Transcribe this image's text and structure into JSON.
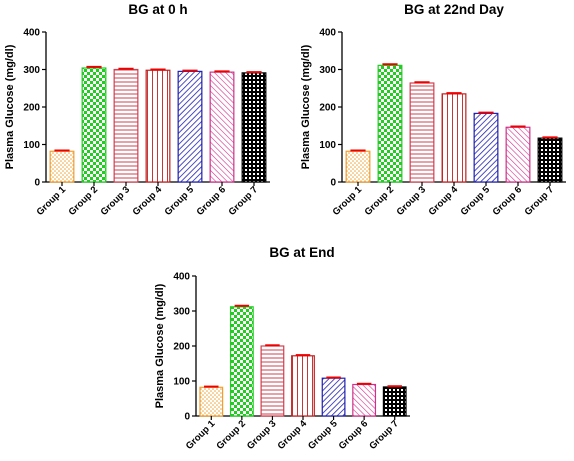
{
  "chart_data": [
    {
      "type": "bar",
      "title": "BG at 0 h",
      "ylabel": "Plasma  Glucose  (mg/dl)",
      "xlabel": "",
      "categories": [
        "Group 1",
        "Group 2",
        "Group 3",
        "Group 4",
        "Group 5",
        "Group 6",
        "Group 7"
      ],
      "values": [
        82,
        304,
        300,
        298,
        295,
        293,
        291
      ],
      "errors": [
        2,
        3,
        2,
        2,
        2,
        2,
        2
      ],
      "ylim": [
        0,
        400
      ],
      "yticks": [
        "0",
        "100",
        "200",
        "300",
        "400"
      ],
      "grid": false
    },
    {
      "type": "bar",
      "title": "BG at 22nd Day",
      "ylabel": "Plasma  Glucose  (mg/dl)",
      "xlabel": "",
      "categories": [
        "Group 1",
        "Group 2",
        "Group 3",
        "Group 4",
        "Group 5",
        "Group 6",
        "Group 7"
      ],
      "values": [
        82,
        311,
        264,
        235,
        183,
        146,
        117
      ],
      "errors": [
        2,
        3,
        2,
        2,
        2,
        2,
        2
      ],
      "ylim": [
        0,
        400
      ],
      "yticks": [
        "0",
        "100",
        "200",
        "300",
        "400"
      ],
      "grid": false
    },
    {
      "type": "bar",
      "title": "BG at End",
      "ylabel": "Plasma  Glucose  (mg/dl)",
      "xlabel": "",
      "categories": [
        "Group 1",
        "Group 2",
        "Group 3",
        "Group 4",
        "Group 5",
        "Group 6",
        "Group 7"
      ],
      "values": [
        82,
        312,
        200,
        172,
        108,
        90,
        83
      ],
      "errors": [
        2,
        3,
        2,
        2,
        2,
        2,
        2
      ],
      "ylim": [
        0,
        400
      ],
      "yticks": [
        "0",
        "100",
        "200",
        "300",
        "400"
      ],
      "grid": false
    }
  ],
  "colors": {
    "group1": "#f0a030",
    "group2": "#22cc22",
    "group3": "#d04050",
    "group4": "#c02020",
    "group5": "#2020b0",
    "group6": "#d0308a",
    "group7": "#000000",
    "errorbar": "#ee0000"
  }
}
